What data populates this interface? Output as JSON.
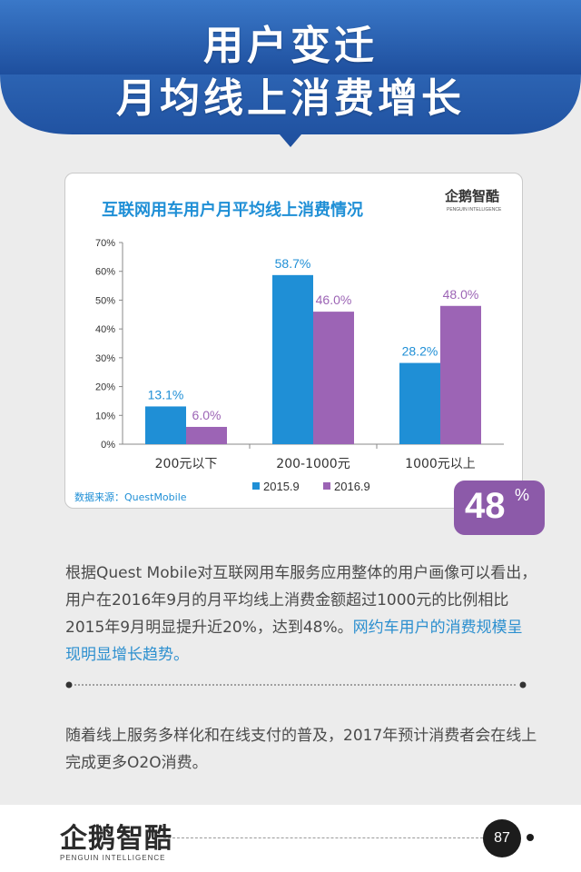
{
  "header": {
    "title_line1": "用户变迁",
    "title_line2": "月均线上消费增长"
  },
  "chart_data": {
    "type": "bar",
    "title": "互联网用车用户月平均线上消费情况",
    "logo": "企鹅智酷",
    "logo_sub": "PENGUIN INTELLIGENCE",
    "categories": [
      "200元以下",
      "200-1000元",
      "1000元以上"
    ],
    "series": [
      {
        "name": "2015.9",
        "values": [
          13.1,
          58.7,
          28.2
        ],
        "labels": [
          "13.1%",
          "58.7%",
          "28.2%"
        ],
        "color": "#1f8fd6"
      },
      {
        "name": "2016.9",
        "values": [
          6.0,
          46.0,
          48.0
        ],
        "labels": [
          "6.0%",
          "46.0%",
          "48.0%"
        ],
        "color": "#9c64b5"
      }
    ],
    "ylim": [
      0,
      70
    ],
    "yticks": [
      "0%",
      "10%",
      "20%",
      "30%",
      "40%",
      "50%",
      "60%",
      "70%"
    ],
    "grid": false,
    "legend": "bottom",
    "source": "数据来源：QuestMobile"
  },
  "badge": {
    "value": "48",
    "unit": "%"
  },
  "paragraph1": {
    "text": "根据Quest Mobile对互联网用车服务应用整体的用户画像可以看出，用户在2016年9月的月平均线上消费金额超过1000元的比例相比2015年9月明显提升近20%，达到48%。",
    "highlight": "网约车用户的消费规模呈现明显增长趋势。"
  },
  "paragraph2": {
    "text": "随着线上服务多样化和在线支付的普及，2017年预计消费者会在线上完成更多O2O消费。"
  },
  "footer": {
    "logo": "企鹅智酷",
    "logo_sub": "PENGUIN INTELLIGENCE",
    "page_number": "87"
  },
  "colors": {
    "header_blue": "#2b63b4",
    "accent_blue": "#1f8fd6",
    "accent_purple": "#9c64b5",
    "badge_purple": "#8c5aa9"
  }
}
